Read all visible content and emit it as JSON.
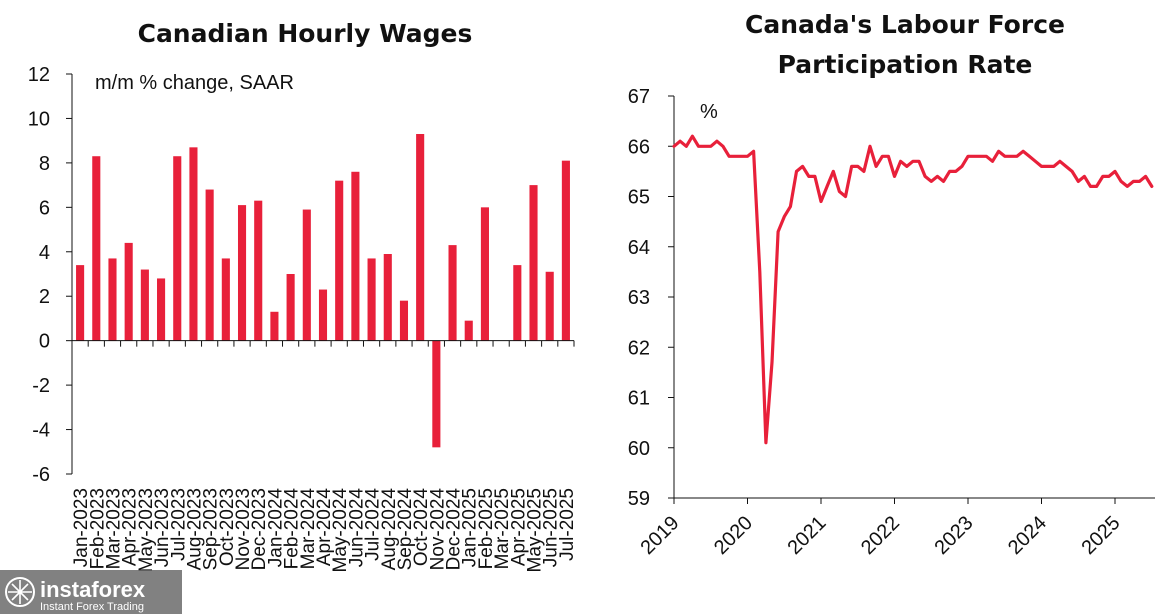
{
  "chart_data": [
    {
      "type": "bar",
      "title": "Canadian Hourly Wages",
      "unit_label": "m/m % change, SAAR",
      "ylim": [
        -6,
        12
      ],
      "yticks": [
        12,
        10,
        8,
        6,
        4,
        2,
        0,
        -2,
        -4,
        -6
      ],
      "color": "#e8203a",
      "categories": [
        "Jan-2023",
        "Feb-2023",
        "Mar-2023",
        "Apr-2023",
        "May-2023",
        "Jun-2023",
        "Jul-2023",
        "Aug-2023",
        "Sep-2023",
        "Oct-2023",
        "Nov-2023",
        "Dec-2023",
        "Jan-2024",
        "Feb-2024",
        "Mar-2024",
        "Apr-2024",
        "May-2024",
        "Jun-2024",
        "Jul-2024",
        "Aug-2024",
        "Sep-2024",
        "Oct-2024",
        "Nov-2024",
        "Dec-2024",
        "Jan-2025",
        "Feb-2025",
        "Mar-2025",
        "Apr-2025",
        "May-2025",
        "Jun-2025",
        "Jul-2025"
      ],
      "values": [
        3.4,
        8.3,
        3.7,
        4.4,
        3.2,
        2.8,
        8.3,
        8.7,
        6.8,
        3.7,
        6.1,
        6.3,
        1.3,
        3.0,
        5.9,
        2.3,
        7.2,
        7.6,
        3.7,
        3.9,
        1.8,
        9.3,
        -4.8,
        4.3,
        0.9,
        6.0,
        0.0,
        3.4,
        7.0,
        3.1,
        8.1
      ]
    },
    {
      "type": "line",
      "title": [
        "Canada's Labour Force",
        "Participation Rate"
      ],
      "unit_label": "%",
      "ylim": [
        59,
        67
      ],
      "yticks": [
        67,
        66,
        65,
        64,
        63,
        62,
        61,
        60,
        59
      ],
      "xticks": [
        "2019",
        "2020",
        "2021",
        "2022",
        "2023",
        "2024",
        "2025"
      ],
      "xlim": [
        "2019-01",
        "2025-07"
      ],
      "color": "#e8203a",
      "series": [
        {
          "x": [
            "2019-01",
            "2019-02",
            "2019-03",
            "2019-04",
            "2019-05",
            "2019-06",
            "2019-07",
            "2019-08",
            "2019-09",
            "2019-10",
            "2019-11",
            "2019-12",
            "2020-01",
            "2020-02",
            "2020-03",
            "2020-04",
            "2020-05",
            "2020-06",
            "2020-07",
            "2020-08",
            "2020-09",
            "2020-10",
            "2020-11",
            "2020-12",
            "2021-01",
            "2021-02",
            "2021-03",
            "2021-04",
            "2021-05",
            "2021-06",
            "2021-07",
            "2021-08",
            "2021-09",
            "2021-10",
            "2021-11",
            "2021-12",
            "2022-01",
            "2022-02",
            "2022-03",
            "2022-04",
            "2022-05",
            "2022-06",
            "2022-07",
            "2022-08",
            "2022-09",
            "2022-10",
            "2022-11",
            "2022-12",
            "2023-01",
            "2023-02",
            "2023-03",
            "2023-04",
            "2023-05",
            "2023-06",
            "2023-07",
            "2023-08",
            "2023-09",
            "2023-10",
            "2023-11",
            "2023-12",
            "2024-01",
            "2024-02",
            "2024-03",
            "2024-04",
            "2024-05",
            "2024-06",
            "2024-07",
            "2024-08",
            "2024-09",
            "2024-10",
            "2024-11",
            "2024-12",
            "2025-01",
            "2025-02",
            "2025-03",
            "2025-04",
            "2025-05",
            "2025-06",
            "2025-07"
          ],
          "y": [
            66.0,
            66.1,
            66.0,
            66.2,
            66.0,
            66.0,
            66.0,
            66.1,
            66.0,
            65.8,
            65.8,
            65.8,
            65.8,
            65.9,
            63.5,
            60.1,
            61.7,
            64.3,
            64.6,
            64.8,
            65.5,
            65.6,
            65.4,
            65.4,
            64.9,
            65.2,
            65.5,
            65.1,
            65.0,
            65.6,
            65.6,
            65.5,
            66.0,
            65.6,
            65.8,
            65.8,
            65.4,
            65.7,
            65.6,
            65.7,
            65.7,
            65.4,
            65.3,
            65.4,
            65.3,
            65.5,
            65.5,
            65.6,
            65.8,
            65.8,
            65.8,
            65.8,
            65.7,
            65.9,
            65.8,
            65.8,
            65.8,
            65.9,
            65.8,
            65.7,
            65.6,
            65.6,
            65.6,
            65.7,
            65.6,
            65.5,
            65.3,
            65.4,
            65.2,
            65.2,
            65.4,
            65.4,
            65.5,
            65.3,
            65.2,
            65.3,
            65.3,
            65.4,
            65.2
          ]
        }
      ]
    }
  ],
  "watermark": {
    "brand": "instaforex",
    "tagline": "Instant Forex Trading"
  }
}
